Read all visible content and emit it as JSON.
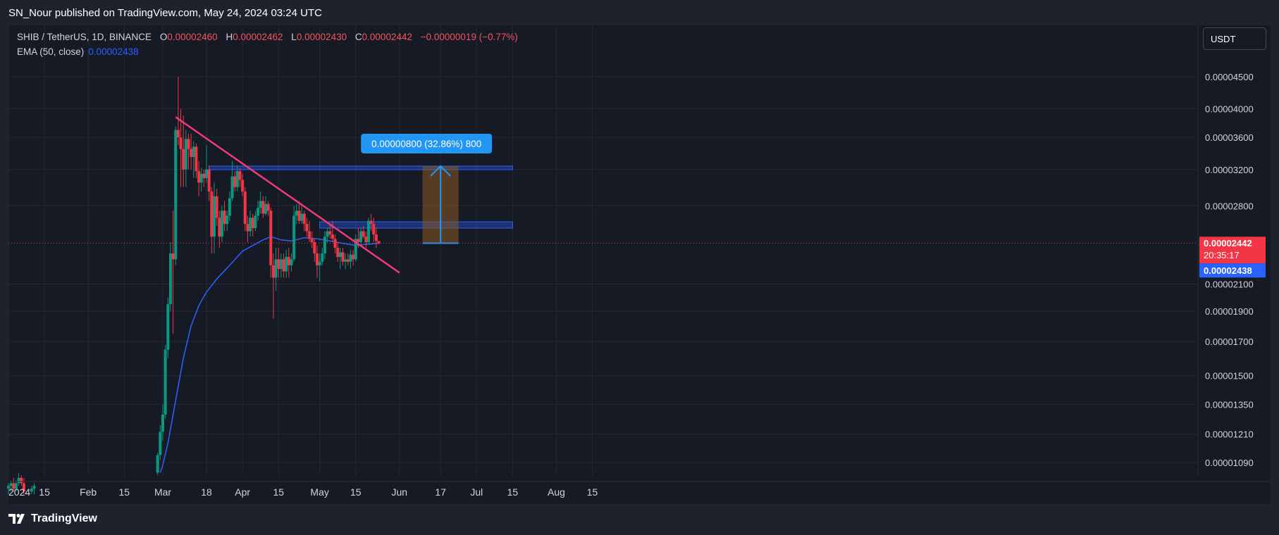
{
  "publisher_line": "SN_Nour published on TradingView.com, May 24, 2024 03:24 UTC",
  "brand": "TradingView",
  "currency": "USDT",
  "legend": {
    "symbol": "SHIB / TetherUS, 1D, BINANCE",
    "open_key": "O",
    "open": "0.00002460",
    "high_key": "H",
    "high": "0.00002462",
    "low_key": "L",
    "low": "0.00002430",
    "close_key": "C",
    "close": "0.00002442",
    "change": "−0.00000019 (−0.77%)",
    "ema_label": "EMA (50, close)",
    "ema_value": "0.00002438"
  },
  "colors": {
    "background": "#161a25",
    "grid": "#242833",
    "up": "#089981",
    "down": "#f23645",
    "ema": "#2962ff",
    "trendline": "#f23a7a",
    "zone": "#2962ff",
    "projection": "#8a5a22",
    "price_label": "#f23645",
    "ema_label": "#2962ff"
  },
  "chart_data": {
    "type": "candlestick",
    "series_name": "SHIB / TetherUS, 1D, BINANCE",
    "y_scale": "log",
    "y_ticks": [
      "0.00004500",
      "0.00004000",
      "0.00003600",
      "0.00003200",
      "0.00002800",
      "0.00002100",
      "0.00001900",
      "0.00001700",
      "0.00001500",
      "0.00001350",
      "0.00001210",
      "0.00001090"
    ],
    "x_ticks": [
      "2024",
      "15",
      "Feb",
      "15",
      "Mar",
      "18",
      "Apr",
      "15",
      "May",
      "15",
      "Jun",
      "17",
      "Jul",
      "15",
      "Aug",
      "15"
    ],
    "x_tick_dates": [
      "2024-01-01",
      "2024-01-15",
      "2024-02-01",
      "2024-02-15",
      "2024-03-01",
      "2024-03-18",
      "2024-04-01",
      "2024-04-15",
      "2024-05-01",
      "2024-05-15",
      "2024-06-01",
      "2024-06-17",
      "2024-07-01",
      "2024-07-15",
      "2024-08-01",
      "2024-08-15"
    ],
    "last_price": "0.00002442",
    "countdown": "20:35:17",
    "ema_last": "0.00002438",
    "candles": [
      {
        "date": "2024-01-01",
        "o": 9.9e-06,
        "h": 1.01e-05,
        "l": 9.7e-06,
        "c": 1e-05
      },
      {
        "date": "2024-01-02",
        "o": 1e-05,
        "h": 1.02e-05,
        "l": 9.8e-06,
        "c": 1.01e-05
      },
      {
        "date": "2024-01-03",
        "o": 1.01e-05,
        "h": 1.03e-05,
        "l": 9.8e-06,
        "c": 9.9e-06
      },
      {
        "date": "2024-01-04",
        "o": 9.9e-06,
        "h": 1.02e-05,
        "l": 9.8e-06,
        "c": 1.01e-05
      },
      {
        "date": "2024-01-05",
        "o": 1.01e-05,
        "h": 1.05e-05,
        "l": 1e-05,
        "c": 1.03e-05
      },
      {
        "date": "2024-01-06",
        "o": 1.03e-05,
        "h": 1.04e-05,
        "l": 1e-05,
        "c": 1.01e-05
      },
      {
        "date": "2024-01-07",
        "o": 1.01e-05,
        "h": 1.03e-05,
        "l": 9.7e-06,
        "c": 9.8e-06
      },
      {
        "date": "2024-01-10",
        "o": 9.8e-06,
        "h": 1e-05,
        "l": 9.7e-06,
        "c": 9.9e-06
      },
      {
        "date": "2024-01-11",
        "o": 9.9e-06,
        "h": 1.01e-05,
        "l": 9.7e-06,
        "c": 1e-05
      },
      {
        "date": "2024-02-28",
        "o": 1.05e-05,
        "h": 1.13e-05,
        "l": 1.04e-05,
        "c": 1.12e-05
      },
      {
        "date": "2024-02-29",
        "o": 1.12e-05,
        "h": 1.25e-05,
        "l": 1.1e-05,
        "c": 1.22e-05
      },
      {
        "date": "2024-03-01",
        "o": 1.22e-05,
        "h": 1.35e-05,
        "l": 1.18e-05,
        "c": 1.3e-05
      },
      {
        "date": "2024-03-02",
        "o": 1.3e-05,
        "h": 1.68e-05,
        "l": 1.28e-05,
        "c": 1.65e-05
      },
      {
        "date": "2024-03-03",
        "o": 1.65e-05,
        "h": 2e-05,
        "l": 1.6e-05,
        "c": 1.95e-05
      },
      {
        "date": "2024-03-04",
        "o": 1.95e-05,
        "h": 2.45e-05,
        "l": 1.9e-05,
        "c": 2.35e-05
      },
      {
        "date": "2024-03-05",
        "o": 2.35e-05,
        "h": 2.75e-05,
        "l": 1.75e-05,
        "c": 2.3e-05
      },
      {
        "date": "2024-03-06",
        "o": 2.3e-05,
        "h": 3.75e-05,
        "l": 2.25e-05,
        "c": 3.7e-05
      },
      {
        "date": "2024-03-07",
        "o": 3.7e-05,
        "h": 4.5e-05,
        "l": 3.5e-05,
        "c": 3.6e-05
      },
      {
        "date": "2024-03-08",
        "o": 3.6e-05,
        "h": 4e-05,
        "l": 3e-05,
        "c": 3.45e-05
      },
      {
        "date": "2024-03-09",
        "o": 3.45e-05,
        "h": 3.9e-05,
        "l": 3e-05,
        "c": 3.2e-05
      },
      {
        "date": "2024-03-10",
        "o": 3.2e-05,
        "h": 3.7e-05,
        "l": 3e-05,
        "c": 3.58e-05
      },
      {
        "date": "2024-03-11",
        "o": 3.58e-05,
        "h": 3.65e-05,
        "l": 3.2e-05,
        "c": 3.45e-05
      },
      {
        "date": "2024-03-12",
        "o": 3.45e-05,
        "h": 3.65e-05,
        "l": 3.2e-05,
        "c": 3.35e-05
      },
      {
        "date": "2024-03-13",
        "o": 3.35e-05,
        "h": 3.55e-05,
        "l": 3.1e-05,
        "c": 3.48e-05
      },
      {
        "date": "2024-03-14",
        "o": 3.48e-05,
        "h": 3.52e-05,
        "l": 3.1e-05,
        "c": 3.18e-05
      },
      {
        "date": "2024-03-15",
        "o": 3.18e-05,
        "h": 3.3e-05,
        "l": 2.9e-05,
        "c": 3.05e-05
      },
      {
        "date": "2024-03-16",
        "o": 3.05e-05,
        "h": 3.22e-05,
        "l": 2.95e-05,
        "c": 3.15e-05
      },
      {
        "date": "2024-03-17",
        "o": 3.15e-05,
        "h": 3.2e-05,
        "l": 3e-05,
        "c": 3.1e-05
      },
      {
        "date": "2024-03-18",
        "o": 3.1e-05,
        "h": 3.5e-05,
        "l": 3.05e-05,
        "c": 3.2e-05
      },
      {
        "date": "2024-03-19",
        "o": 3.2e-05,
        "h": 3.25e-05,
        "l": 2.85e-05,
        "c": 2.95e-05
      },
      {
        "date": "2024-03-20",
        "o": 2.95e-05,
        "h": 3e-05,
        "l": 2.35e-05,
        "c": 2.5e-05
      },
      {
        "date": "2024-03-21",
        "o": 2.5e-05,
        "h": 3.05e-05,
        "l": 2.35e-05,
        "c": 2.9e-05
      },
      {
        "date": "2024-03-22",
        "o": 2.9e-05,
        "h": 2.98e-05,
        "l": 2.6e-05,
        "c": 2.68e-05
      },
      {
        "date": "2024-03-23",
        "o": 2.68e-05,
        "h": 2.75e-05,
        "l": 2.4e-05,
        "c": 2.5e-05
      },
      {
        "date": "2024-03-24",
        "o": 2.5e-05,
        "h": 2.8e-05,
        "l": 2.45e-05,
        "c": 2.75e-05
      },
      {
        "date": "2024-03-25",
        "o": 2.75e-05,
        "h": 2.85e-05,
        "l": 2.55e-05,
        "c": 2.62e-05
      },
      {
        "date": "2024-03-26",
        "o": 2.62e-05,
        "h": 2.75e-05,
        "l": 2.55e-05,
        "c": 2.7e-05
      },
      {
        "date": "2024-03-27",
        "o": 2.7e-05,
        "h": 2.95e-05,
        "l": 2.65e-05,
        "c": 2.88e-05
      },
      {
        "date": "2024-03-28",
        "o": 2.88e-05,
        "h": 3.3e-05,
        "l": 2.85e-05,
        "c": 3.12e-05
      },
      {
        "date": "2024-03-29",
        "o": 3.12e-05,
        "h": 3.18e-05,
        "l": 2.95e-05,
        "c": 3e-05
      },
      {
        "date": "2024-03-30",
        "o": 3e-05,
        "h": 3.25e-05,
        "l": 2.95e-05,
        "c": 3.18e-05
      },
      {
        "date": "2024-03-31",
        "o": 3.18e-05,
        "h": 3.22e-05,
        "l": 3e-05,
        "c": 3.08e-05
      },
      {
        "date": "2024-04-01",
        "o": 3.08e-05,
        "h": 3.15e-05,
        "l": 2.9e-05,
        "c": 2.95e-05
      },
      {
        "date": "2024-04-02",
        "o": 2.95e-05,
        "h": 3e-05,
        "l": 2.55e-05,
        "c": 2.62e-05
      },
      {
        "date": "2024-04-03",
        "o": 2.62e-05,
        "h": 2.7e-05,
        "l": 2.45e-05,
        "c": 2.55e-05
      },
      {
        "date": "2024-04-04",
        "o": 2.55e-05,
        "h": 2.75e-05,
        "l": 2.5e-05,
        "c": 2.68e-05
      },
      {
        "date": "2024-04-05",
        "o": 2.68e-05,
        "h": 2.72e-05,
        "l": 2.5e-05,
        "c": 2.58e-05
      },
      {
        "date": "2024-04-06",
        "o": 2.58e-05,
        "h": 2.75e-05,
        "l": 2.55e-05,
        "c": 2.7e-05
      },
      {
        "date": "2024-04-07",
        "o": 2.7e-05,
        "h": 2.85e-05,
        "l": 2.65e-05,
        "c": 2.78e-05
      },
      {
        "date": "2024-04-08",
        "o": 2.78e-05,
        "h": 2.95e-05,
        "l": 2.72e-05,
        "c": 2.85e-05
      },
      {
        "date": "2024-04-09",
        "o": 2.85e-05,
        "h": 2.9e-05,
        "l": 2.68e-05,
        "c": 2.72e-05
      },
      {
        "date": "2024-04-10",
        "o": 2.72e-05,
        "h": 2.9e-05,
        "l": 2.7e-05,
        "c": 2.82e-05
      },
      {
        "date": "2024-04-11",
        "o": 2.82e-05,
        "h": 2.85e-05,
        "l": 2.7e-05,
        "c": 2.75e-05
      },
      {
        "date": "2024-04-12",
        "o": 2.75e-05,
        "h": 2.78e-05,
        "l": 2.15e-05,
        "c": 2.25e-05
      },
      {
        "date": "2024-04-13",
        "o": 2.25e-05,
        "h": 2.35e-05,
        "l": 1.85e-05,
        "c": 2.15e-05
      },
      {
        "date": "2024-04-14",
        "o": 2.15e-05,
        "h": 2.4e-05,
        "l": 2.05e-05,
        "c": 2.3e-05
      },
      {
        "date": "2024-04-15",
        "o": 2.3e-05,
        "h": 2.4e-05,
        "l": 2.15e-05,
        "c": 2.22e-05
      },
      {
        "date": "2024-04-16",
        "o": 2.22e-05,
        "h": 2.35e-05,
        "l": 2.15e-05,
        "c": 2.3e-05
      },
      {
        "date": "2024-04-17",
        "o": 2.3e-05,
        "h": 2.35e-05,
        "l": 2.15e-05,
        "c": 2.2e-05
      },
      {
        "date": "2024-04-18",
        "o": 2.2e-05,
        "h": 2.38e-05,
        "l": 2.15e-05,
        "c": 2.32e-05
      },
      {
        "date": "2024-04-19",
        "o": 2.32e-05,
        "h": 2.4e-05,
        "l": 2.15e-05,
        "c": 2.25e-05
      },
      {
        "date": "2024-04-20",
        "o": 2.25e-05,
        "h": 2.35e-05,
        "l": 2.2e-05,
        "c": 2.3e-05
      },
      {
        "date": "2024-04-21",
        "o": 2.3e-05,
        "h": 2.8e-05,
        "l": 2.28e-05,
        "c": 2.7e-05
      },
      {
        "date": "2024-04-22",
        "o": 2.7e-05,
        "h": 2.82e-05,
        "l": 2.62e-05,
        "c": 2.75e-05
      },
      {
        "date": "2024-04-23",
        "o": 2.75e-05,
        "h": 2.85e-05,
        "l": 2.62e-05,
        "c": 2.65e-05
      },
      {
        "date": "2024-04-24",
        "o": 2.65e-05,
        "h": 2.8e-05,
        "l": 2.62e-05,
        "c": 2.72e-05
      },
      {
        "date": "2024-04-25",
        "o": 2.72e-05,
        "h": 2.75e-05,
        "l": 2.55e-05,
        "c": 2.62e-05
      },
      {
        "date": "2024-04-26",
        "o": 2.62e-05,
        "h": 2.68e-05,
        "l": 2.5e-05,
        "c": 2.55e-05
      },
      {
        "date": "2024-04-27",
        "o": 2.55e-05,
        "h": 2.65e-05,
        "l": 2.45e-05,
        "c": 2.48e-05
      },
      {
        "date": "2024-04-28",
        "o": 2.48e-05,
        "h": 2.55e-05,
        "l": 2.4e-05,
        "c": 2.45e-05
      },
      {
        "date": "2024-04-29",
        "o": 2.45e-05,
        "h": 2.48e-05,
        "l": 2.28e-05,
        "c": 2.35e-05
      },
      {
        "date": "2024-04-30",
        "o": 2.35e-05,
        "h": 2.42e-05,
        "l": 2.15e-05,
        "c": 2.25e-05
      },
      {
        "date": "2024-05-01",
        "o": 2.25e-05,
        "h": 2.35e-05,
        "l": 2.12e-05,
        "c": 2.28e-05
      },
      {
        "date": "2024-05-02",
        "o": 2.28e-05,
        "h": 2.4e-05,
        "l": 2.25e-05,
        "c": 2.35e-05
      },
      {
        "date": "2024-05-03",
        "o": 2.35e-05,
        "h": 2.55e-05,
        "l": 2.3e-05,
        "c": 2.5e-05
      },
      {
        "date": "2024-05-04",
        "o": 2.5e-05,
        "h": 2.58e-05,
        "l": 2.45e-05,
        "c": 2.55e-05
      },
      {
        "date": "2024-05-05",
        "o": 2.55e-05,
        "h": 2.62e-05,
        "l": 2.48e-05,
        "c": 2.52e-05
      },
      {
        "date": "2024-05-06",
        "o": 2.52e-05,
        "h": 2.65e-05,
        "l": 2.45e-05,
        "c": 2.48e-05
      },
      {
        "date": "2024-05-07",
        "o": 2.48e-05,
        "h": 2.52e-05,
        "l": 2.35e-05,
        "c": 2.4e-05
      },
      {
        "date": "2024-05-08",
        "o": 2.4e-05,
        "h": 2.45e-05,
        "l": 2.28e-05,
        "c": 2.32e-05
      },
      {
        "date": "2024-05-09",
        "o": 2.32e-05,
        "h": 2.4e-05,
        "l": 2.22e-05,
        "c": 2.36e-05
      },
      {
        "date": "2024-05-10",
        "o": 2.36e-05,
        "h": 2.4e-05,
        "l": 2.25e-05,
        "c": 2.28e-05
      },
      {
        "date": "2024-05-11",
        "o": 2.28e-05,
        "h": 2.35e-05,
        "l": 2.22e-05,
        "c": 2.3e-05
      },
      {
        "date": "2024-05-12",
        "o": 2.3e-05,
        "h": 2.35e-05,
        "l": 2.25e-05,
        "c": 2.28e-05
      },
      {
        "date": "2024-05-13",
        "o": 2.28e-05,
        "h": 2.38e-05,
        "l": 2.22e-05,
        "c": 2.34e-05
      },
      {
        "date": "2024-05-14",
        "o": 2.34e-05,
        "h": 2.38e-05,
        "l": 2.25e-05,
        "c": 2.3e-05
      },
      {
        "date": "2024-05-15",
        "o": 2.3e-05,
        "h": 2.52e-05,
        "l": 2.28e-05,
        "c": 2.48e-05
      },
      {
        "date": "2024-05-16",
        "o": 2.48e-05,
        "h": 2.58e-05,
        "l": 2.4e-05,
        "c": 2.45e-05
      },
      {
        "date": "2024-05-17",
        "o": 2.45e-05,
        "h": 2.58e-05,
        "l": 2.42e-05,
        "c": 2.55e-05
      },
      {
        "date": "2024-05-18",
        "o": 2.55e-05,
        "h": 2.6e-05,
        "l": 2.48e-05,
        "c": 2.5e-05
      },
      {
        "date": "2024-05-19",
        "o": 2.5e-05,
        "h": 2.55e-05,
        "l": 2.4e-05,
        "c": 2.45e-05
      },
      {
        "date": "2024-05-20",
        "o": 2.45e-05,
        "h": 2.68e-05,
        "l": 2.43e-05,
        "c": 2.65e-05
      },
      {
        "date": "2024-05-21",
        "o": 2.65e-05,
        "h": 2.72e-05,
        "l": 2.55e-05,
        "c": 2.62e-05
      },
      {
        "date": "2024-05-22",
        "o": 2.62e-05,
        "h": 2.68e-05,
        "l": 2.45e-05,
        "c": 2.52e-05
      },
      {
        "date": "2024-05-23",
        "o": 2.52e-05,
        "h": 2.58e-05,
        "l": 2.4e-05,
        "c": 2.46e-05
      },
      {
        "date": "2024-05-24",
        "o": 2.46e-05,
        "h": 2.46e-05,
        "l": 2.43e-05,
        "c": 2.44e-05
      }
    ],
    "ema50": [
      {
        "date": "2024-02-29",
        "v": 1.05e-05
      },
      {
        "date": "2024-03-01",
        "v": 1.08e-05
      },
      {
        "date": "2024-03-03",
        "v": 1.17e-05
      },
      {
        "date": "2024-03-06",
        "v": 1.37e-05
      },
      {
        "date": "2024-03-09",
        "v": 1.6e-05
      },
      {
        "date": "2024-03-12",
        "v": 1.8e-05
      },
      {
        "date": "2024-03-15",
        "v": 1.94e-05
      },
      {
        "date": "2024-03-18",
        "v": 2.04e-05
      },
      {
        "date": "2024-03-22",
        "v": 2.14e-05
      },
      {
        "date": "2024-03-27",
        "v": 2.25e-05
      },
      {
        "date": "2024-04-01",
        "v": 2.37e-05
      },
      {
        "date": "2024-04-05",
        "v": 2.42e-05
      },
      {
        "date": "2024-04-09",
        "v": 2.47e-05
      },
      {
        "date": "2024-04-12",
        "v": 2.5e-05
      },
      {
        "date": "2024-04-16",
        "v": 2.47e-05
      },
      {
        "date": "2024-04-20",
        "v": 2.46e-05
      },
      {
        "date": "2024-04-25",
        "v": 2.49e-05
      },
      {
        "date": "2024-04-30",
        "v": 2.48e-05
      },
      {
        "date": "2024-05-05",
        "v": 2.46e-05
      },
      {
        "date": "2024-05-10",
        "v": 2.44e-05
      },
      {
        "date": "2024-05-15",
        "v": 2.42e-05
      },
      {
        "date": "2024-05-19",
        "v": 2.43e-05
      },
      {
        "date": "2024-05-24",
        "v": 2.44e-05
      }
    ],
    "trendline": {
      "start_date": "2024-03-06",
      "start_value": 3.88e-05,
      "end_date": "2024-06-01",
      "end_value": 2.19e-05
    },
    "resistance_zones": [
      {
        "start_date": "2024-03-19",
        "end_date": "2024-07-15",
        "low": 3.2e-05,
        "high": 3.24e-05
      },
      {
        "start_date": "2024-05-01",
        "end_date": "2024-07-15",
        "low": 2.58e-05,
        "high": 2.64e-05
      }
    ],
    "projection": {
      "start_date": "2024-06-10",
      "end_date": "2024-06-24",
      "from": 2.44e-05,
      "to": 3.24e-05,
      "label": "0.00000800 (32.86%) 800"
    }
  }
}
